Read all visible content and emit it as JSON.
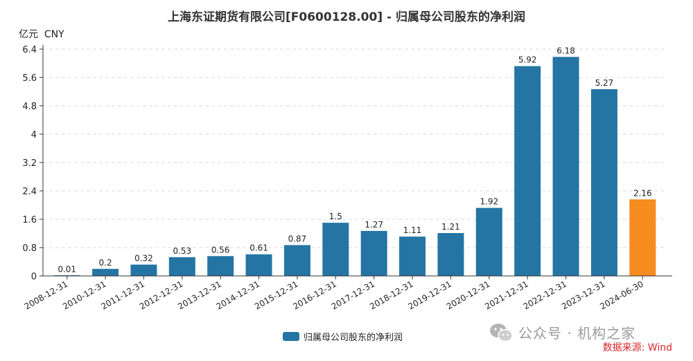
{
  "chart_data": {
    "type": "bar",
    "title": "上海东证期货有限公司[F0600128.00] - 归属母公司股东的净利润",
    "ylabel": "亿元  CNY",
    "xlabel": "",
    "categories": [
      "2008-12-31",
      "2010-12-31",
      "2011-12-31",
      "2012-12-31",
      "2013-12-31",
      "2014-12-31",
      "2015-12-31",
      "2016-12-31",
      "2017-12-31",
      "2018-12-31",
      "2019-12-31",
      "2020-12-31",
      "2021-12-31",
      "2022-12-31",
      "2023-12-31",
      "2024-06-30"
    ],
    "values": [
      0.01,
      0.2,
      0.32,
      0.53,
      0.56,
      0.61,
      0.87,
      1.5,
      1.27,
      1.11,
      1.21,
      1.92,
      5.92,
      6.18,
      5.27,
      2.16
    ],
    "value_labels": [
      "0.01",
      "0.2",
      "0.32",
      "0.53",
      "0.56",
      "0.61",
      "0.87",
      "1.5",
      "1.27",
      "1.11",
      "1.21",
      "1.92",
      "5.92",
      "6.18",
      "5.27",
      "2.16"
    ],
    "yticks": [
      "0",
      "0.8",
      "1.6",
      "2.4",
      "3.2",
      "4",
      "4.8",
      "5.6",
      "6.4"
    ],
    "ylim": [
      0,
      6.4
    ],
    "grid": true,
    "legend": [
      "归属母公司股东的净利润"
    ],
    "legend_position": "bottom-center",
    "colors": {
      "default": "#2475a4",
      "highlight": "#f68b1f",
      "highlight_index": 15
    }
  },
  "watermark": {
    "text": "公众号 · 机构之家",
    "icon": "wechat-icon"
  },
  "source": "数据来源: Wind"
}
